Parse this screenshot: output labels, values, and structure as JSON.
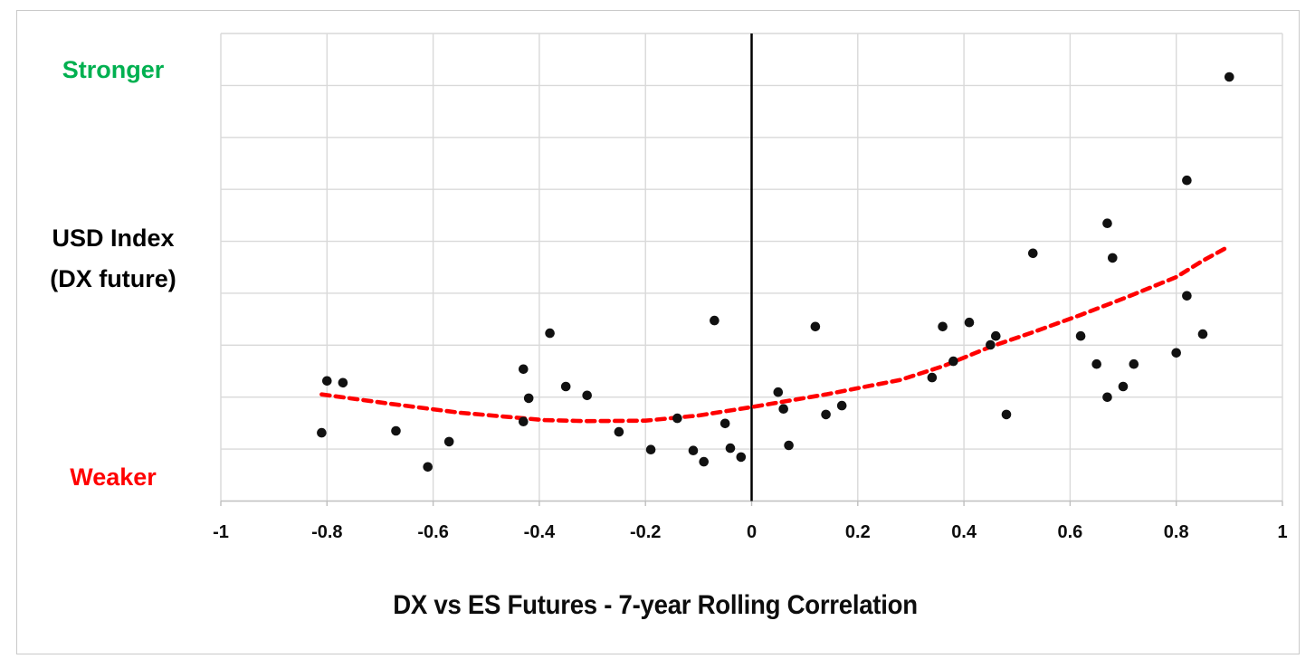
{
  "labels": {
    "y_top": "Stronger",
    "y_axis_line1": "USD Index",
    "y_axis_line2": "(DX future)",
    "y_bottom": "Weaker",
    "x_title": "DX vs ES Futures - 7-year Rolling Correlation"
  },
  "colors": {
    "stronger_text": "#00B050",
    "weaker_text": "#FF0000",
    "trendline": "#FF0000",
    "points": "#111111",
    "grid": "#D9D9D9",
    "axis_line": "#BFBFBF",
    "zero_line": "#000000",
    "tick_text": "#0d0d0d",
    "outer_border": "#C9C9C9"
  },
  "x_axis": {
    "min": -1,
    "max": 1,
    "ticks": [
      "-1",
      "-0.8",
      "-0.6",
      "-0.4",
      "-0.2",
      "0",
      "0.2",
      "0.4",
      "0.6",
      "0.8",
      "1"
    ]
  },
  "chart_data": {
    "type": "scatter",
    "title": "DX vs ES Futures - 7-year Rolling Correlation",
    "xlabel": "DX vs ES Futures - 7-year Rolling Correlation",
    "ylabel": "USD Index (DX future)",
    "y_axis_qualitative": {
      "top": "Stronger",
      "bottom": "Weaker"
    },
    "xlim": [
      -1,
      1
    ],
    "ylim": [
      0,
      100
    ],
    "y_units_note": "y = relative USD Index level (no numeric labels shown): 0 = plot bottom (Weaker), 100 = plot top (Stronger)",
    "grid": true,
    "zero_reference_line_x": 0,
    "legend": "none",
    "points": [
      [
        -0.81,
        14.6
      ],
      [
        -0.8,
        25.7
      ],
      [
        -0.77,
        25.3
      ],
      [
        -0.67,
        15.0
      ],
      [
        -0.61,
        7.3
      ],
      [
        -0.57,
        12.7
      ],
      [
        -0.43,
        28.2
      ],
      [
        -0.43,
        17.0
      ],
      [
        -0.42,
        22.0
      ],
      [
        -0.38,
        35.9
      ],
      [
        -0.35,
        24.5
      ],
      [
        -0.31,
        22.6
      ],
      [
        -0.25,
        14.8
      ],
      [
        -0.19,
        11.0
      ],
      [
        -0.14,
        17.7
      ],
      [
        -0.11,
        10.8
      ],
      [
        -0.09,
        8.4
      ],
      [
        -0.07,
        38.6
      ],
      [
        -0.05,
        16.6
      ],
      [
        -0.04,
        11.3
      ],
      [
        -0.02,
        9.4
      ],
      [
        0.05,
        23.3
      ],
      [
        0.06,
        19.7
      ],
      [
        0.07,
        11.9
      ],
      [
        0.12,
        37.3
      ],
      [
        0.14,
        18.5
      ],
      [
        0.17,
        20.4
      ],
      [
        0.34,
        26.4
      ],
      [
        0.36,
        37.3
      ],
      [
        0.38,
        29.9
      ],
      [
        0.41,
        38.2
      ],
      [
        0.45,
        33.4
      ],
      [
        0.46,
        35.3
      ],
      [
        0.48,
        18.5
      ],
      [
        0.53,
        53.0
      ],
      [
        0.62,
        35.3
      ],
      [
        0.65,
        29.3
      ],
      [
        0.67,
        59.4
      ],
      [
        0.67,
        22.2
      ],
      [
        0.68,
        52.0
      ],
      [
        0.7,
        24.5
      ],
      [
        0.72,
        29.3
      ],
      [
        0.8,
        31.7
      ],
      [
        0.82,
        68.6
      ],
      [
        0.82,
        43.9
      ],
      [
        0.85,
        35.7
      ],
      [
        0.9,
        90.7
      ]
    ],
    "trendline": {
      "style": "dashed",
      "shape": "polynomial",
      "color": "#FF0000",
      "points": [
        [
          -0.81,
          22.8
        ],
        [
          -0.68,
          20.8
        ],
        [
          -0.55,
          18.9
        ],
        [
          -0.39,
          17.3
        ],
        [
          -0.31,
          17.1
        ],
        [
          -0.2,
          17.2
        ],
        [
          -0.1,
          18.3
        ],
        [
          0.0,
          20.1
        ],
        [
          0.14,
          22.8
        ],
        [
          0.28,
          25.9
        ],
        [
          0.36,
          28.8
        ],
        [
          0.45,
          33.0
        ],
        [
          0.53,
          36.1
        ],
        [
          0.62,
          39.8
        ],
        [
          0.7,
          43.3
        ],
        [
          0.8,
          47.9
        ],
        [
          0.85,
          51.4
        ],
        [
          0.9,
          54.5
        ]
      ]
    }
  }
}
